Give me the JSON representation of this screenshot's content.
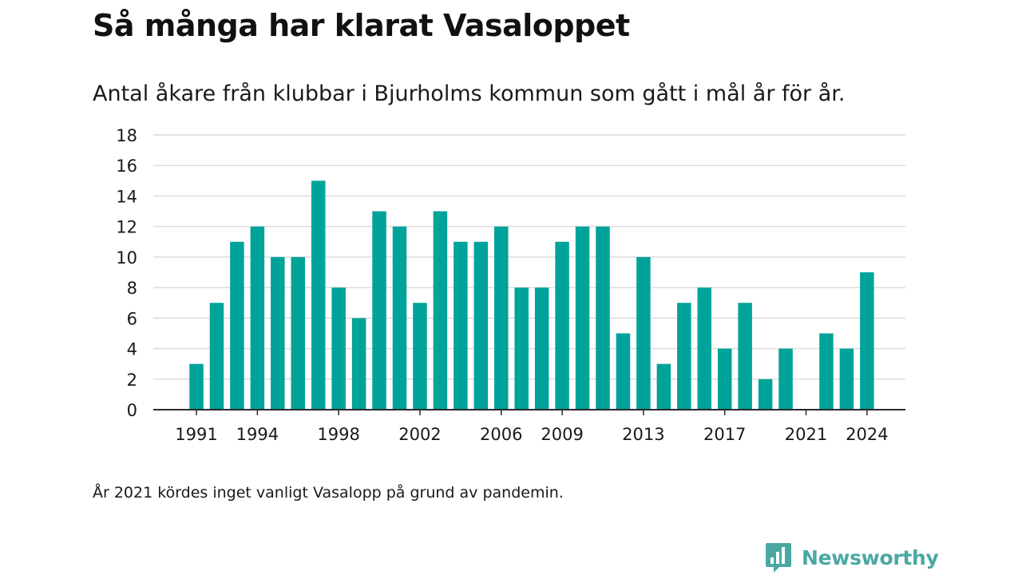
{
  "title": "Så många har klarat Vasaloppet",
  "subtitle": "Antal åkare från klubbar i Bjurholms kommun som gått i mål år för år.",
  "note": "År 2021 kördes inget vanligt Vasalopp på grund av pandemin.",
  "brand": {
    "name": "Newsworthy",
    "icon": "newsworthy-logo-icon",
    "color": "#4aa8a3"
  },
  "chart_data": {
    "type": "bar",
    "categories": [
      "1991",
      "1992",
      "1993",
      "1994",
      "1995",
      "1996",
      "1997",
      "1998",
      "1999",
      "2000",
      "2001",
      "2002",
      "2003",
      "2004",
      "2005",
      "2006",
      "2007",
      "2008",
      "2009",
      "2010",
      "2011",
      "2012",
      "2013",
      "2014",
      "2015",
      "2016",
      "2017",
      "2018",
      "2019",
      "2020",
      "2021",
      "2022",
      "2023",
      "2024"
    ],
    "values": [
      3,
      7,
      11,
      12,
      10,
      10,
      15,
      8,
      6,
      13,
      12,
      7,
      13,
      11,
      11,
      12,
      8,
      8,
      11,
      12,
      12,
      5,
      10,
      3,
      7,
      8,
      4,
      7,
      2,
      4,
      0,
      5,
      4,
      9
    ],
    "x_tick_labels": [
      "1991",
      "1994",
      "1998",
      "2002",
      "2006",
      "2009",
      "2013",
      "2017",
      "2021",
      "2024"
    ],
    "y_ticks": [
      0,
      2,
      4,
      6,
      8,
      10,
      12,
      14,
      16,
      18
    ],
    "ylim": [
      0,
      18
    ],
    "bar_color": "#00a399",
    "grid": true,
    "xlabel": "",
    "ylabel": ""
  }
}
